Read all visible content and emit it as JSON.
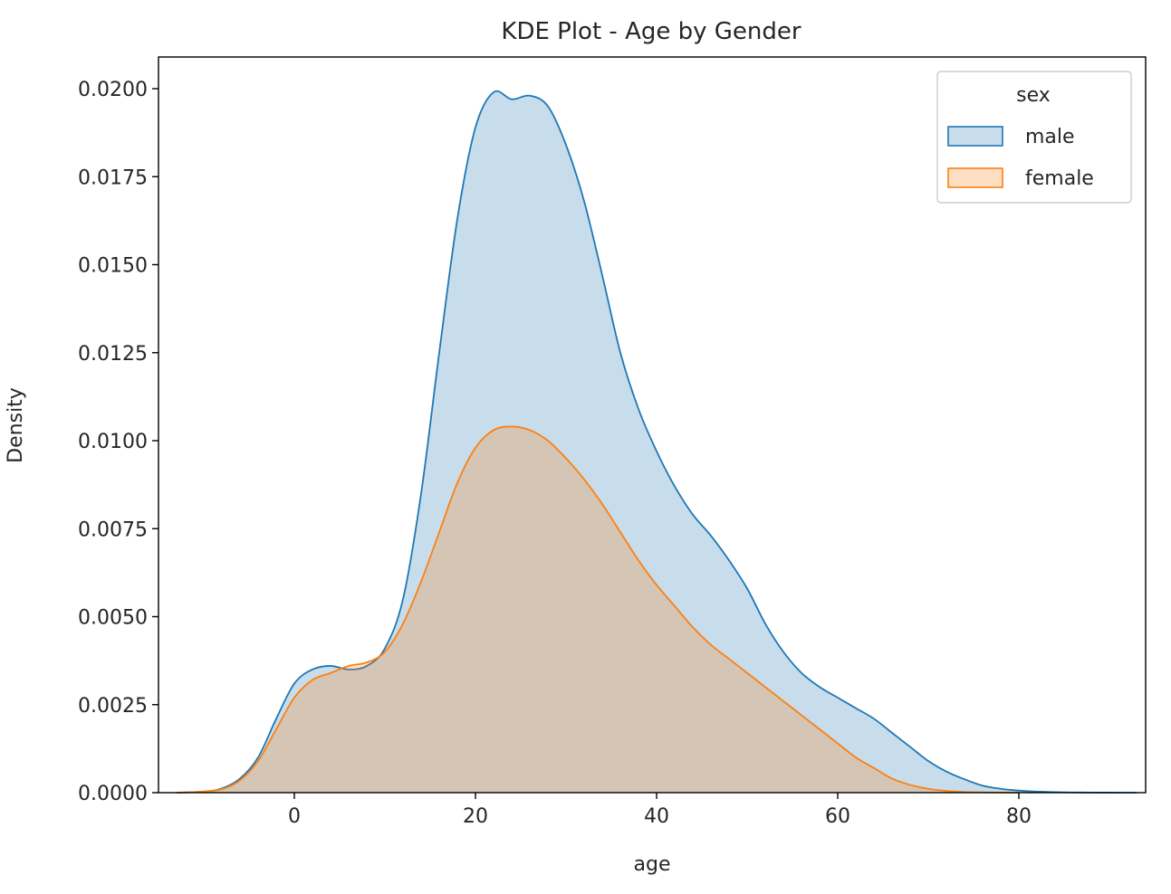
{
  "chart_data": {
    "type": "area",
    "title": "KDE Plot - Age by Gender",
    "xlabel": "age",
    "ylabel": "Density",
    "xlim": [
      -15,
      94
    ],
    "ylim": [
      0,
      0.0209
    ],
    "x_ticks": [
      0,
      20,
      40,
      60,
      80
    ],
    "y_ticks": [
      0.0,
      0.0025,
      0.005,
      0.0075,
      0.01,
      0.0125,
      0.015,
      0.0175,
      0.02
    ],
    "x_tick_labels": [
      "0",
      "20",
      "40",
      "60",
      "80"
    ],
    "y_tick_labels": [
      "0.0000",
      "0.0025",
      "0.0050",
      "0.0075",
      "0.0100",
      "0.0125",
      "0.0150",
      "0.0175",
      "0.0200"
    ],
    "grid": false,
    "legend": {
      "title": "sex",
      "placement": "top-right"
    },
    "series": [
      {
        "name": "male",
        "color": "#1f77b4",
        "x": [
          -13,
          -10,
          -8,
          -6,
          -4,
          -2,
          0,
          2,
          4,
          6,
          8,
          10,
          12,
          14,
          16,
          18,
          20,
          22,
          24,
          26,
          28,
          30,
          32,
          34,
          36,
          38,
          40,
          42,
          44,
          46,
          48,
          50,
          52,
          54,
          56,
          58,
          60,
          62,
          64,
          66,
          68,
          70,
          72,
          74,
          76,
          78,
          80,
          82,
          84,
          86,
          88,
          90,
          93
        ],
        "y": [
          0.0,
          3e-05,
          0.00012,
          0.0004,
          0.001,
          0.0021,
          0.0031,
          0.0035,
          0.0036,
          0.0035,
          0.0036,
          0.0041,
          0.0055,
          0.0085,
          0.0125,
          0.0163,
          0.0189,
          0.0199,
          0.0197,
          0.0198,
          0.0195,
          0.0184,
          0.0168,
          0.0147,
          0.0125,
          0.0109,
          0.0097,
          0.0087,
          0.0079,
          0.0073,
          0.0066,
          0.0058,
          0.0048,
          0.004,
          0.0034,
          0.003,
          0.0027,
          0.0024,
          0.0021,
          0.0017,
          0.0013,
          0.0009,
          0.0006,
          0.00038,
          0.0002,
          0.00011,
          6e-05,
          3e-05,
          1.5e-05,
          7e-06,
          3e-06,
          1e-06,
          0.0
        ]
      },
      {
        "name": "female",
        "color": "#ff7f0e",
        "x": [
          -13,
          -10,
          -8,
          -6,
          -4,
          -2,
          0,
          2,
          4,
          6,
          8,
          10,
          12,
          14,
          16,
          18,
          20,
          22,
          24,
          26,
          28,
          30,
          32,
          34,
          36,
          38,
          40,
          42,
          44,
          46,
          48,
          50,
          52,
          54,
          56,
          58,
          60,
          62,
          64,
          66,
          68,
          70,
          72,
          74,
          76,
          78,
          80
        ],
        "y": [
          0.0,
          3e-05,
          0.0001,
          0.00035,
          0.0009,
          0.0018,
          0.0027,
          0.0032,
          0.0034,
          0.0036,
          0.0037,
          0.004,
          0.0048,
          0.006,
          0.0074,
          0.0088,
          0.0098,
          0.0103,
          0.0104,
          0.0103,
          0.01,
          0.0095,
          0.0089,
          0.0082,
          0.0074,
          0.0066,
          0.0059,
          0.0053,
          0.0047,
          0.0042,
          0.0038,
          0.0034,
          0.003,
          0.0026,
          0.0022,
          0.0018,
          0.0014,
          0.001,
          0.0007,
          0.0004,
          0.00022,
          0.00011,
          5e-05,
          2e-05,
          1e-05,
          4e-06,
          0.0
        ]
      }
    ]
  }
}
